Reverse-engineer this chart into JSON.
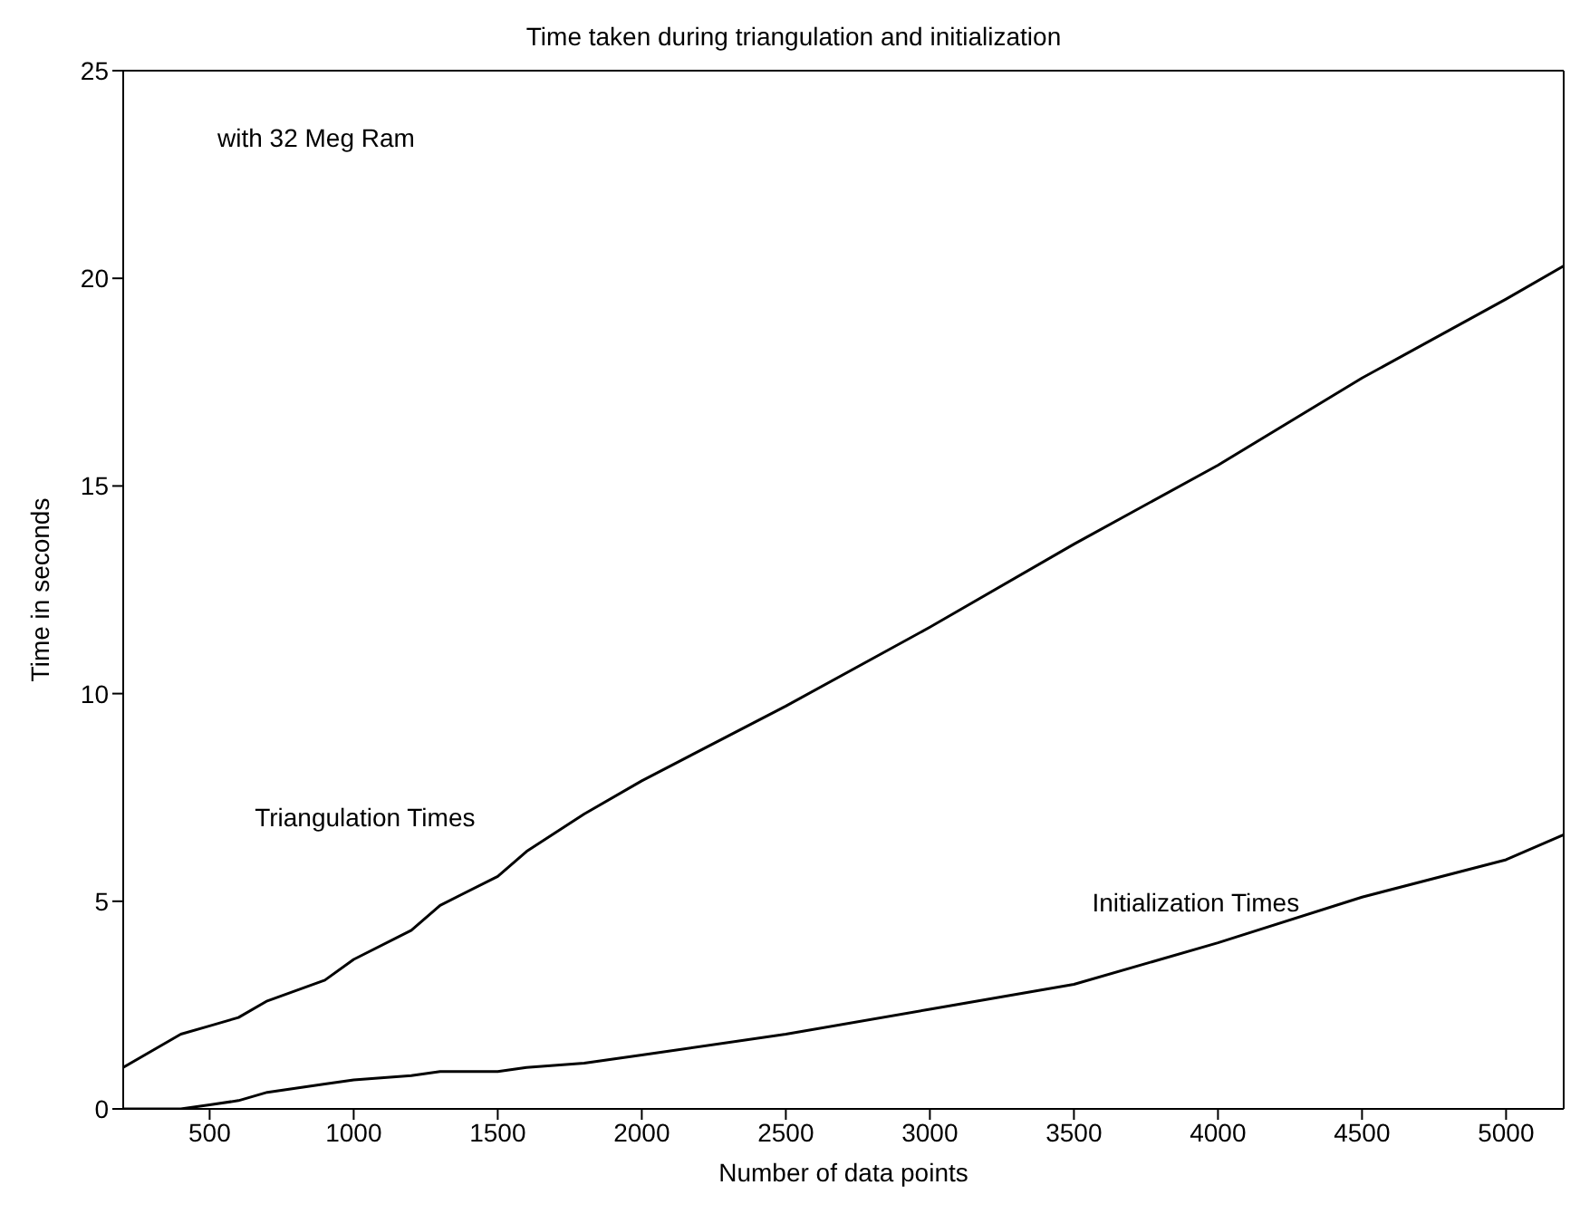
{
  "chart_data": {
    "type": "line",
    "title": "Time taken during triangulation and initialization",
    "xlabel": "Number of data points",
    "ylabel": "Time in seconds",
    "annotations": [
      "with 32 Meg Ram"
    ],
    "x": [
      200,
      400,
      500,
      600,
      700,
      900,
      1000,
      1200,
      1300,
      1500,
      1600,
      1800,
      2000,
      2500,
      3000,
      3500,
      4000,
      4500,
      5000,
      5200
    ],
    "series": [
      {
        "name": "Triangulation Times",
        "color": "#000000",
        "values": [
          1.0,
          1.8,
          2.0,
          2.2,
          2.6,
          3.1,
          3.6,
          4.3,
          4.9,
          5.6,
          6.2,
          7.1,
          7.9,
          9.7,
          11.6,
          13.6,
          15.5,
          17.6,
          19.5,
          20.3
        ]
      },
      {
        "name": "Initialization Times",
        "color": "#000000",
        "values": [
          0.0,
          0.0,
          0.1,
          0.2,
          0.4,
          0.6,
          0.7,
          0.8,
          0.9,
          0.9,
          1.0,
          1.1,
          1.3,
          1.8,
          2.4,
          3.0,
          4.0,
          5.1,
          6.0,
          6.6
        ]
      }
    ],
    "xlim": [
      200,
      5200
    ],
    "xticks": [
      500,
      1000,
      1500,
      2000,
      2500,
      3000,
      3500,
      4000,
      4500,
      5000
    ],
    "ylim": [
      0,
      25
    ],
    "yticks": [
      0,
      5,
      10,
      15,
      20,
      25
    ],
    "grid": false,
    "legend": false,
    "marker": "none",
    "line_style": "solid"
  }
}
